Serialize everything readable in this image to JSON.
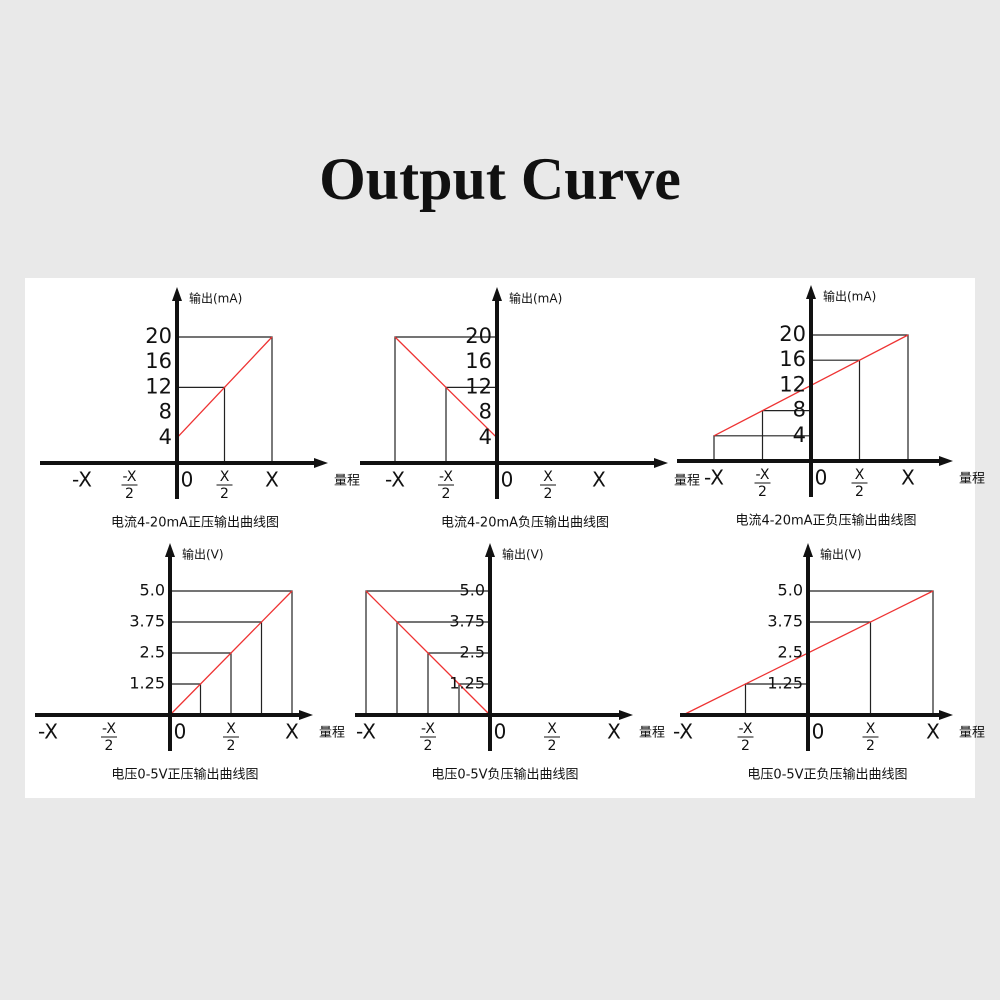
{
  "title": "Output Curve",
  "panels": [
    {
      "y_label": "输出(mA)",
      "x_label": "量程",
      "y_ticks": [
        "20",
        "16",
        "12",
        "8",
        "4"
      ],
      "x_ticks": [
        "-X",
        {
          "numerator": "-X",
          "denominator": "2"
        },
        "0",
        {
          "numerator": "X",
          "denominator": "2"
        },
        "X"
      ],
      "caption": "电流4-20mA正压输出曲线图"
    },
    {
      "y_label": "输出(mA)",
      "x_label": "量程",
      "y_ticks": [
        "20",
        "16",
        "12",
        "8",
        "4"
      ],
      "x_ticks": [
        "-X",
        {
          "numerator": "-X",
          "denominator": "2"
        },
        "0",
        {
          "numerator": "X",
          "denominator": "2"
        },
        "X"
      ],
      "caption": "电流4-20mA负压输出曲线图"
    },
    {
      "y_label": "输出(mA)",
      "x_label": "量程",
      "y_ticks": [
        "20",
        "16",
        "12",
        "8",
        "4"
      ],
      "x_ticks": [
        "-X",
        {
          "numerator": "-X",
          "denominator": "2"
        },
        "0",
        {
          "numerator": "X",
          "denominator": "2"
        },
        "X"
      ],
      "caption": "电流4-20mA正负压输出曲线图"
    },
    {
      "y_label": "输出(V)",
      "x_label": "量程",
      "y_ticks": [
        "5.0",
        "3.75",
        "2.5",
        "1.25"
      ],
      "x_ticks": [
        "-X",
        {
          "numerator": "-X",
          "denominator": "2"
        },
        "0",
        {
          "numerator": "X",
          "denominator": "2"
        },
        "X"
      ],
      "caption": "电压0-5V正压输出曲线图"
    },
    {
      "y_label": "输出(V)",
      "x_label": "量程",
      "y_ticks": [
        "5.0",
        "3.75",
        "2.5",
        "1.25"
      ],
      "x_ticks": [
        "-X",
        {
          "numerator": "-X",
          "denominator": "2"
        },
        "0",
        {
          "numerator": "X",
          "denominator": "2"
        },
        "X"
      ],
      "caption": "电压0-5V负压输出曲线图"
    },
    {
      "y_label": "输出(V)",
      "x_label": "量程",
      "y_ticks": [
        "5.0",
        "3.75",
        "2.5",
        "1.25"
      ],
      "x_ticks": [
        "-X",
        {
          "numerator": "-X",
          "denominator": "2"
        },
        "0",
        {
          "numerator": "X",
          "denominator": "2"
        },
        "X"
      ],
      "caption": "电压0-5V正负压输出曲线图"
    }
  ]
}
